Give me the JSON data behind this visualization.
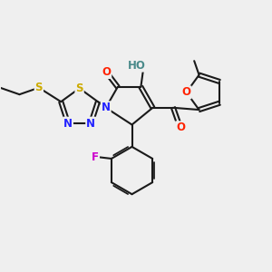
{
  "bg_color": "#efefef",
  "bond_color": "#1a1a1a",
  "bond_width": 1.5,
  "dbo": 0.07,
  "atom_colors": {
    "O": "#ff2200",
    "N": "#2222ff",
    "S": "#ccaa00",
    "F": "#cc00cc",
    "HO": "#4a8a8a",
    "C": "#1a1a1a"
  },
  "font_size": 8.5
}
